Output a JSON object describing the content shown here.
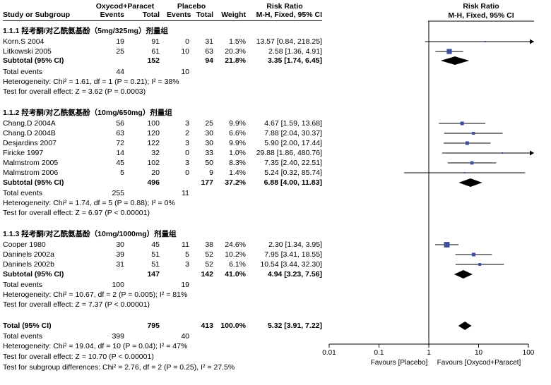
{
  "headers": {
    "group1": "Oxycod+Paracet",
    "group2": "Placebo",
    "rr_title": "Risk Ratio",
    "study": "Study or Subgroup",
    "events": "Events",
    "total": "Total",
    "weight": "Weight",
    "rr_method": "M-H, Fixed, 95% CI",
    "plot_title": "Risk Ratio",
    "plot_method": "M-H, Fixed, 95% CI"
  },
  "subgroups": [
    {
      "title": "1.1.1 羟考酮/对乙酰氨基酚（5mg/325mg）剂量组",
      "studies": [
        {
          "name": "Korn.S 2004",
          "e1": "19",
          "n1": "91",
          "e2": "0",
          "n2": "31",
          "weight": "1.5%",
          "ci": "13.57 [0.84, 218.25]"
        },
        {
          "name": "Litkowski 2005",
          "e1": "25",
          "n1": "61",
          "e2": "10",
          "n2": "63",
          "weight": "20.3%",
          "ci": "2.58 [1.36, 4.91]"
        }
      ],
      "subtotal": {
        "label": "Subtotal (95% CI)",
        "n1": "152",
        "n2": "94",
        "weight": "21.8%",
        "ci": "3.35 [1.74, 6.45]"
      },
      "total_events": {
        "label": "Total events",
        "e1": "44",
        "e2": "10"
      },
      "heterogeneity": "Heterogeneity: Chi² = 1.61, df = 1 (P = 0.21); I² = 38%",
      "overall": "Test for overall effect: Z = 3.62 (P = 0.0003)"
    },
    {
      "title": "1.1.2 羟考酮/对乙酰氨基酚（10mg/650mg）剂量组",
      "studies": [
        {
          "name": "Chang.D 2004A",
          "e1": "56",
          "n1": "100",
          "e2": "3",
          "n2": "25",
          "weight": "9.9%",
          "ci": "4.67 [1.59, 13.68]"
        },
        {
          "name": "Chang.D 2004B",
          "e1": "63",
          "n1": "120",
          "e2": "2",
          "n2": "30",
          "weight": "6.6%",
          "ci": "7.88 [2.04, 30.37]"
        },
        {
          "name": "Desjardins 2007",
          "e1": "72",
          "n1": "122",
          "e2": "3",
          "n2": "30",
          "weight": "9.9%",
          "ci": "5.90 [2.00, 17.44]"
        },
        {
          "name": "Firicke 1997",
          "e1": "14",
          "n1": "32",
          "e2": "0",
          "n2": "33",
          "weight": "1.0%",
          "ci": "29.88 [1.86, 480.76]"
        },
        {
          "name": "Malmstrom 2005",
          "e1": "45",
          "n1": "102",
          "e2": "3",
          "n2": "50",
          "weight": "8.3%",
          "ci": "7.35 [2.40, 22.51]"
        },
        {
          "name": "Malmstrom 2006",
          "e1": "5",
          "n1": "20",
          "e2": "0",
          "n2": "9",
          "weight": "1.4%",
          "ci": "5.24 [0.32, 85.74]"
        }
      ],
      "subtotal": {
        "label": "Subtotal (95% CI)",
        "n1": "496",
        "n2": "177",
        "weight": "37.2%",
        "ci": "6.88 [4.00, 11.83]"
      },
      "total_events": {
        "label": "Total events",
        "e1": "255",
        "e2": "11"
      },
      "heterogeneity": "Heterogeneity: Chi² = 1.74, df = 5 (P = 0.88); I² = 0%",
      "overall": "Test for overall effect: Z = 6.97 (P < 0.00001)"
    },
    {
      "title": "1.1.3 羟考酮/对乙酰氨基酚（10mg/1000mg）剂量组",
      "studies": [
        {
          "name": "Cooper 1980",
          "e1": "30",
          "n1": "45",
          "e2": "11",
          "n2": "38",
          "weight": "24.6%",
          "ci": "2.30 [1.34, 3.95]"
        },
        {
          "name": "Daninels 2002a",
          "e1": "39",
          "n1": "51",
          "e2": "5",
          "n2": "52",
          "weight": "10.2%",
          "ci": "7.95 [3.41, 18.55]"
        },
        {
          "name": "Daninels 2002b",
          "e1": "31",
          "n1": "51",
          "e2": "3",
          "n2": "52",
          "weight": "6.1%",
          "ci": "10.54 [3.44, 32.30]"
        }
      ],
      "subtotal": {
        "label": "Subtotal (95% CI)",
        "n1": "147",
        "n2": "142",
        "weight": "41.0%",
        "ci": "4.94 [3.23, 7.56]"
      },
      "total_events": {
        "label": "Total events",
        "e1": "100",
        "e2": "19"
      },
      "heterogeneity": "Heterogeneity: Chi² = 10.67, df = 2 (P = 0.005); I² = 81%",
      "overall": "Test for overall effect: Z = 7.37 (P < 0.00001)"
    }
  ],
  "total": {
    "label": "Total (95% CI)",
    "n1": "795",
    "n2": "413",
    "weight": "100.0%",
    "ci": "5.32 [3.91, 7.22]",
    "events_label": "Total events",
    "e1": "399",
    "e2": "40",
    "heterogeneity": "Heterogeneity: Chi² = 19.04, df = 10 (P = 0.04); I² = 47%",
    "overall": "Test for overall effect: Z = 10.70 (P < 0.00001)",
    "subgroup_diff": "Test for subgroup differences: Chi² = 2.76, df = 2 (P = 0.25), I² = 27.5%"
  },
  "chart_data": {
    "type": "forest",
    "title": "Risk Ratio",
    "subtitle": "M-H, Fixed, 95% CI",
    "x_scale": "log",
    "xlim": [
      0.01,
      100
    ],
    "ticks": [
      0.01,
      0.1,
      1,
      10,
      100
    ],
    "tick_labels": [
      "0.01",
      "0.1",
      "1",
      "10",
      "100"
    ],
    "favours_left": "Favours [Placebo]",
    "favours_right": "Favours [Oxycod+Paracet]",
    "null_value": 1,
    "study_color": "#3f4fa0",
    "points": [
      {
        "label": "Korn.S 2004",
        "rr": 13.57,
        "lo": 0.84,
        "hi": 218.25,
        "weight": 1.5,
        "kind": "study"
      },
      {
        "label": "Litkowski 2005",
        "rr": 2.58,
        "lo": 1.36,
        "hi": 4.91,
        "weight": 20.3,
        "kind": "study"
      },
      {
        "label": "Subtotal 1.1.1",
        "rr": 3.35,
        "lo": 1.74,
        "hi": 6.45,
        "weight": 21.8,
        "kind": "subtotal"
      },
      {
        "label": "Chang.D 2004A",
        "rr": 4.67,
        "lo": 1.59,
        "hi": 13.68,
        "weight": 9.9,
        "kind": "study"
      },
      {
        "label": "Chang.D 2004B",
        "rr": 7.88,
        "lo": 2.04,
        "hi": 30.37,
        "weight": 6.6,
        "kind": "study"
      },
      {
        "label": "Desjardins 2007",
        "rr": 5.9,
        "lo": 2.0,
        "hi": 17.44,
        "weight": 9.9,
        "kind": "study"
      },
      {
        "label": "Firicke 1997",
        "rr": 29.88,
        "lo": 1.86,
        "hi": 480.76,
        "weight": 1.0,
        "kind": "study"
      },
      {
        "label": "Malmstrom 2005",
        "rr": 7.35,
        "lo": 2.4,
        "hi": 22.51,
        "weight": 8.3,
        "kind": "study"
      },
      {
        "label": "Malmstrom 2006",
        "rr": 5.24,
        "lo": 0.32,
        "hi": 85.74,
        "weight": 1.4,
        "kind": "study"
      },
      {
        "label": "Subtotal 1.1.2",
        "rr": 6.88,
        "lo": 4.0,
        "hi": 11.83,
        "weight": 37.2,
        "kind": "subtotal"
      },
      {
        "label": "Cooper 1980",
        "rr": 2.3,
        "lo": 1.34,
        "hi": 3.95,
        "weight": 24.6,
        "kind": "study"
      },
      {
        "label": "Daninels 2002a",
        "rr": 7.95,
        "lo": 3.41,
        "hi": 18.55,
        "weight": 10.2,
        "kind": "study"
      },
      {
        "label": "Daninels 2002b",
        "rr": 10.54,
        "lo": 3.44,
        "hi": 32.3,
        "weight": 6.1,
        "kind": "study"
      },
      {
        "label": "Subtotal 1.1.3",
        "rr": 4.94,
        "lo": 3.23,
        "hi": 7.56,
        "weight": 41.0,
        "kind": "subtotal"
      },
      {
        "label": "Total",
        "rr": 5.32,
        "lo": 3.91,
        "hi": 7.22,
        "weight": 100.0,
        "kind": "total"
      }
    ]
  }
}
